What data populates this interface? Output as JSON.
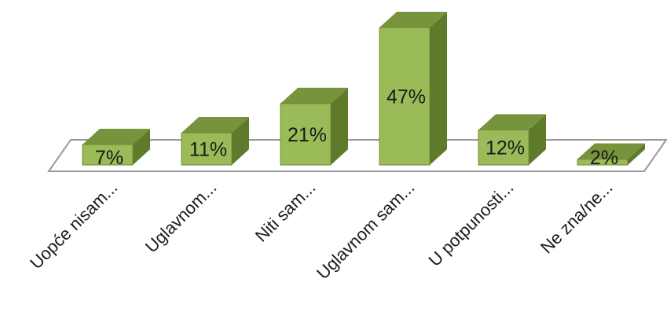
{
  "chart_data": {
    "type": "bar",
    "style": "3d-column",
    "categories": [
      "Uopće nisam...",
      "Uglavnom...",
      "Niti sam...",
      "Uglavnom sam...",
      "U potpunosti...",
      "Ne zna/ne..."
    ],
    "values": [
      7,
      11,
      21,
      47,
      12,
      2
    ],
    "data_labels": [
      "7%",
      "11%",
      "21%",
      "47%",
      "12%",
      "2%"
    ],
    "value_unit": "%",
    "ylim": [
      0,
      47
    ],
    "grid": false,
    "legend": "none",
    "colors": {
      "bar_front": "#9bbb59",
      "bar_top": "#77933c",
      "bar_side": "#5e7a2a",
      "bar_edge": "#6f8a36",
      "floor_stroke": "#9a9a9a"
    }
  }
}
